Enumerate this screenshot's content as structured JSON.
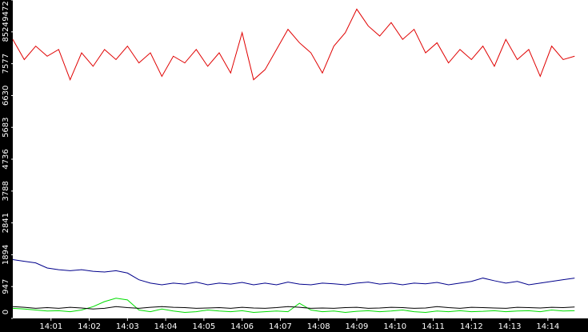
{
  "chart_data": {
    "type": "line",
    "x": [
      0,
      0.3,
      0.6,
      0.9,
      1.2,
      1.5,
      1.8,
      2.1,
      2.4,
      2.7,
      3.0,
      3.3,
      3.6,
      3.9,
      4.2,
      4.5,
      4.8,
      5.1,
      5.4,
      5.7,
      6.0,
      6.3,
      6.6,
      6.9,
      7.2,
      7.5,
      7.8,
      8.1,
      8.4,
      8.7,
      9.0,
      9.3,
      9.6,
      9.9,
      10.2,
      10.5,
      10.8,
      11.1,
      11.4,
      11.7,
      12.0,
      12.3,
      12.6,
      12.9,
      13.2,
      13.5,
      13.8,
      14.1,
      14.4,
      14.7
    ],
    "series": [
      {
        "color": "#e00000",
        "values": [
          8300,
          7700,
          8100,
          7800,
          8000,
          7100,
          7900,
          7500,
          8000,
          7700,
          8100,
          7600,
          7900,
          7200,
          7800,
          7600,
          8000,
          7500,
          7900,
          7300,
          8500,
          7100,
          7400,
          8000,
          8600,
          8200,
          7900,
          7300,
          8100,
          8500,
          9200,
          8700,
          8400,
          8800,
          8300,
          8600,
          7900,
          8200,
          7600,
          8000,
          7700,
          8100,
          7500,
          8300,
          7700,
          8000,
          7200,
          8100,
          7700,
          7800
        ]
      },
      {
        "color": "#00008b",
        "values": [
          1750,
          1700,
          1650,
          1500,
          1450,
          1420,
          1450,
          1400,
          1380,
          1420,
          1350,
          1150,
          1050,
          1000,
          1050,
          1020,
          1080,
          1000,
          1050,
          1020,
          1070,
          1000,
          1050,
          1000,
          1080,
          1020,
          1000,
          1050,
          1030,
          1000,
          1050,
          1080,
          1020,
          1050,
          1000,
          1050,
          1030,
          1070,
          1000,
          1050,
          1100,
          1200,
          1120,
          1050,
          1100,
          1000,
          1050,
          1100,
          1150,
          1200
        ]
      },
      {
        "color": "#00dd00",
        "values": [
          300,
          280,
          250,
          220,
          230,
          200,
          250,
          350,
          500,
          600,
          550,
          250,
          200,
          280,
          220,
          180,
          200,
          250,
          220,
          200,
          230,
          180,
          200,
          220,
          200,
          450,
          250,
          200,
          220,
          180,
          210,
          230,
          200,
          220,
          250,
          200,
          180,
          220,
          200,
          230,
          200,
          210,
          230,
          200,
          220,
          230,
          200,
          250,
          220,
          230
        ]
      },
      {
        "color": "#000000",
        "values": [
          350,
          330,
          300,
          320,
          300,
          330,
          310,
          280,
          300,
          350,
          320,
          300,
          330,
          350,
          330,
          320,
          300,
          310,
          320,
          300,
          330,
          310,
          300,
          320,
          350,
          330,
          300,
          310,
          300,
          320,
          330,
          300,
          310,
          330,
          320,
          300,
          310,
          350,
          320,
          300,
          330,
          320,
          310,
          300,
          330,
          320,
          310,
          330,
          320,
          340
        ]
      }
    ],
    "xlim": [
      0,
      15.05
    ],
    "xticks": [
      {
        "value": 1,
        "label": "14:01"
      },
      {
        "value": 2,
        "label": "14:02"
      },
      {
        "value": 3,
        "label": "14:03"
      },
      {
        "value": 4,
        "label": "14:04"
      },
      {
        "value": 5,
        "label": "14:05"
      },
      {
        "value": 6,
        "label": "14:06"
      },
      {
        "value": 7,
        "label": "14:07"
      },
      {
        "value": 8,
        "label": "14:08"
      },
      {
        "value": 9,
        "label": "14:09"
      },
      {
        "value": 10,
        "label": "14:10"
      },
      {
        "value": 11,
        "label": "14:11"
      },
      {
        "value": 12,
        "label": "14:12"
      },
      {
        "value": 13,
        "label": "14:13"
      },
      {
        "value": 14,
        "label": "14:14"
      }
    ],
    "ylim": [
      0,
      9472
    ],
    "yticks": [
      0,
      947,
      1894,
      2841,
      3788,
      4736,
      5683,
      6630,
      7577,
      8524,
      9472
    ]
  }
}
